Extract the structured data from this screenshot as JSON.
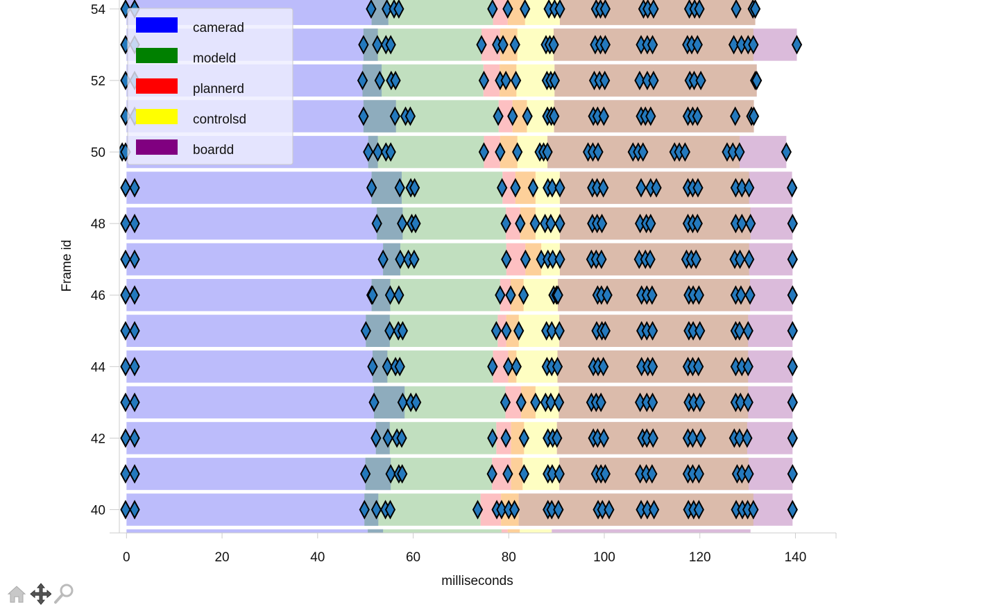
{
  "chart_data": {
    "type": "gantt",
    "xlabel": "milliseconds",
    "ylabel": "Frame id",
    "xlim": [
      -1.5,
      148.5
    ],
    "ylim": [
      39.35,
      54.25
    ],
    "x_ticks": [
      0,
      20,
      40,
      60,
      80,
      100,
      120,
      140
    ],
    "y_ticks": [
      40,
      42,
      44,
      46,
      48,
      50,
      52,
      54
    ],
    "legend": {
      "placement": "top-left",
      "entries": [
        {
          "name": "camerad",
          "color": "#0000ff"
        },
        {
          "name": "modeld",
          "color": "#008000"
        },
        {
          "name": "plannerd",
          "color": "#ff0000"
        },
        {
          "name": "controlsd",
          "color": "#ffff00"
        },
        {
          "name": "boardd",
          "color": "#800080"
        }
      ]
    },
    "bar_colors": {
      "camerad": "#bcbcfb",
      "camerad_modeld_overlap": "#8eacbd",
      "modeld": "#c1dfbf",
      "plannerd": "#fdc0c2",
      "plannerd_controlsd_overlap": "#fdd09a",
      "controlsd": "#fefec2",
      "controlsd_boardd_overlap": "#dbbbab",
      "boardd": "#dbbbdb"
    },
    "marker_color": "#2479bd",
    "frames": [
      {
        "id": 54,
        "camerad": [
          0,
          54.8
        ],
        "modeld": [
          51.3,
          76.7
        ],
        "plannerd": [
          76.7,
          83.4
        ],
        "controlsd": [
          79.8,
          90.7
        ],
        "boardd": [
          90.7,
          131.5
        ],
        "markers": [
          -0.2,
          1.7,
          51.2,
          54.5,
          56,
          57,
          76.6,
          79.8,
          83.4,
          88.4,
          89.6,
          90.7,
          98.3,
          99.2,
          100.2,
          108.2,
          109.1,
          110.3,
          117.8,
          118.9,
          119.9,
          127.6,
          131.1,
          131.6
        ]
      },
      {
        "id": 53,
        "camerad": [
          0,
          52.6
        ],
        "modeld": [
          49.6,
          74.3
        ],
        "plannerd": [
          74.3,
          81.8
        ],
        "controlsd": [
          78.2,
          89.4
        ],
        "boardd": [
          89.4,
          140.3
        ],
        "markers": [
          -0.2,
          1.7,
          49.6,
          52.5,
          54.3,
          55.3,
          74.3,
          77.6,
          78.8,
          81.3,
          87.8,
          88.6,
          89.4,
          98.1,
          99.2,
          100.2,
          107.7,
          109,
          110.1,
          117.4,
          118.3,
          119.5,
          127.1,
          128.7,
          130.1,
          131.2,
          140.3
        ]
      },
      {
        "id": 52,
        "camerad": [
          0,
          53.4
        ],
        "modeld": [
          49.4,
          74.7
        ],
        "plannerd": [
          74.7,
          81.6
        ],
        "controlsd": [
          78.1,
          89.6
        ],
        "boardd": [
          89.6,
          131.9
        ],
        "markers": [
          -0.2,
          1.7,
          49.4,
          53,
          55.4,
          56.3,
          74.8,
          78.2,
          79.4,
          81.5,
          88,
          88.8,
          89.6,
          97.9,
          99,
          100.1,
          107.4,
          109,
          110.3,
          117.9,
          118.8,
          120.2,
          131.6,
          131.9
        ]
      },
      {
        "id": 51,
        "camerad": [
          0,
          56.4
        ],
        "modeld": [
          49.6,
          77.9
        ],
        "plannerd": [
          77.9,
          83.8
        ],
        "controlsd": [
          80.8,
          89.5
        ],
        "boardd": [
          89.5,
          131.3
        ],
        "markers": [
          -0.2,
          1.7,
          49.6,
          56.2,
          58.4,
          59.4,
          77.8,
          80.8,
          83.9,
          88.1,
          88.9,
          89.5,
          97.7,
          98.6,
          99.9,
          107.7,
          108.6,
          109.7,
          117.5,
          118.5,
          119.5,
          127.4,
          130.8,
          131.3
        ]
      },
      {
        "id": 50,
        "camerad": [
          0,
          52.6
        ],
        "modeld": [
          50.6,
          74.8
        ],
        "plannerd": [
          74.8,
          81.8
        ],
        "controlsd": [
          78.2,
          88.1
        ],
        "boardd": [
          88.1,
          138.1
        ],
        "markers": [
          -0.9,
          -0.2,
          50.6,
          52.6,
          54.3,
          55.3,
          74.8,
          78.2,
          81.8,
          86.5,
          87.3,
          88.1,
          96.6,
          97.6,
          98.7,
          106,
          107.1,
          108.1,
          114.7,
          115.7,
          116.9,
          125.7,
          126.9,
          128.3,
          138.1
        ]
      },
      {
        "id": 49,
        "camerad": [
          0,
          57.6
        ],
        "modeld": [
          51.3,
          78.7
        ],
        "plannerd": [
          78.7,
          85.6
        ],
        "controlsd": [
          81.4,
          90.7
        ],
        "boardd": [
          90.7,
          139.3
        ],
        "markers": [
          -0.2,
          1.7,
          51.3,
          57.2,
          59.5,
          60.3,
          78.6,
          81.4,
          85.1,
          88.2,
          89.1,
          90.7,
          97.5,
          98.5,
          99.8,
          107.7,
          109.7,
          110.9,
          117.5,
          118.5,
          119.6,
          127.5,
          128.8,
          130.3,
          139.3
        ]
      },
      {
        "id": 48,
        "camerad": [
          0,
          57.8
        ],
        "modeld": [
          52.4,
          79.4
        ],
        "plannerd": [
          79.4,
          85.6
        ],
        "controlsd": [
          82.4,
          90.7
        ],
        "boardd": [
          90.7,
          139.4
        ],
        "markers": [
          -0.2,
          1.7,
          52.4,
          57.7,
          59.7,
          60.5,
          79.4,
          82.4,
          85.5,
          87.6,
          88.8,
          90.7,
          97.5,
          98.5,
          99.5,
          107.5,
          108.8,
          109.7,
          117.5,
          118.5,
          119.5,
          127.5,
          128.8,
          130.6,
          139.4
        ]
      },
      {
        "id": 47,
        "camerad": [
          0,
          57.3
        ],
        "modeld": [
          53.7,
          79.5
        ],
        "plannerd": [
          79.5,
          86.8
        ],
        "controlsd": [
          83.5,
          90.7
        ],
        "boardd": [
          90.7,
          139.4
        ],
        "markers": [
          -0.2,
          1.7,
          53.7,
          57.3,
          59,
          60.2,
          79.5,
          83.5,
          86.8,
          88.2,
          89.2,
          90.7,
          97.3,
          98.3,
          99.4,
          107.3,
          108.6,
          109.6,
          117.2,
          118.2,
          119.2,
          127.3,
          128.4,
          130.3,
          139.4
        ]
      },
      {
        "id": 46,
        "camerad": [
          0,
          55.2
        ],
        "modeld": [
          51.3,
          78.2
        ],
        "plannerd": [
          78.2,
          83.1
        ],
        "controlsd": [
          80.4,
          90.3
        ],
        "boardd": [
          90.3,
          139.4
        ],
        "markers": [
          -0.2,
          1.7,
          51.3,
          51.5,
          55.2,
          57,
          78.2,
          80.4,
          83.1,
          89.4,
          90,
          90.3,
          98.6,
          99.4,
          100.6,
          107.8,
          108.9,
          110,
          117.7,
          118.6,
          119.8,
          127.5,
          128.6,
          130.5,
          139.4
        ]
      },
      {
        "id": 45,
        "camerad": [
          0,
          55.1
        ],
        "modeld": [
          50.1,
          77.7
        ],
        "plannerd": [
          77.7,
          82.1
        ],
        "controlsd": [
          79.5,
          90.6
        ],
        "boardd": [
          90.6,
          139.4
        ],
        "markers": [
          -0.2,
          1.7,
          50.1,
          55.1,
          56.9,
          57.8,
          77.4,
          79.5,
          82.1,
          87.9,
          89,
          90.6,
          98.4,
          99.5,
          100.2,
          107.8,
          108.9,
          110.1,
          117.7,
          118.6,
          120,
          127.5,
          128.3,
          130.1,
          139.4
        ]
      },
      {
        "id": 44,
        "camerad": [
          0,
          54.6
        ],
        "modeld": [
          51.5,
          76.7
        ],
        "plannerd": [
          76.7,
          81.6
        ],
        "controlsd": [
          79.9,
          90.2
        ],
        "boardd": [
          90.2,
          139.4
        ],
        "markers": [
          -0.2,
          1.7,
          51.5,
          54.6,
          56.3,
          57.2,
          76.6,
          79.9,
          81.6,
          88,
          89,
          90.2,
          97.7,
          98.7,
          99.8,
          107.8,
          109.1,
          110.1,
          117.5,
          118.5,
          119.7,
          127.5,
          128.8,
          130.1,
          139.4
        ]
      },
      {
        "id": 43,
        "camerad": [
          0,
          58.2
        ],
        "modeld": [
          51.8,
          79.3
        ],
        "plannerd": [
          79.3,
          85.6
        ],
        "controlsd": [
          82.6,
          90.5
        ],
        "boardd": [
          90.5,
          139.4
        ],
        "markers": [
          -0.2,
          1.7,
          51.8,
          57.8,
          59.5,
          60.6,
          79.3,
          82.6,
          85.6,
          87.7,
          88.8,
          90.5,
          97.3,
          98.3,
          99.3,
          107.5,
          108.9,
          110.1,
          117.7,
          118.7,
          120,
          127.5,
          128.5,
          130.1,
          139.4
        ]
      },
      {
        "id": 42,
        "camerad": [
          0,
          55.1
        ],
        "modeld": [
          52.2,
          77.4
        ],
        "plannerd": [
          77.4,
          83.2
        ],
        "controlsd": [
          80.5,
          90.1
        ],
        "boardd": [
          90.1,
          139.4
        ],
        "markers": [
          -0.2,
          1.7,
          52.2,
          54.7,
          56.6,
          57.6,
          76.6,
          79.4,
          83.2,
          88.2,
          89.2,
          90.1,
          97.7,
          98.6,
          99.9,
          108,
          108.9,
          110.2,
          117.5,
          118.5,
          120.2,
          127.2,
          128.3,
          129.9,
          139.4
        ]
      },
      {
        "id": 41,
        "camerad": [
          0,
          55.3
        ],
        "modeld": [
          50,
          76.5
        ],
        "plannerd": [
          76.5,
          82.9
        ],
        "controlsd": [
          80.5,
          90.6
        ],
        "boardd": [
          90.6,
          139.4
        ],
        "markers": [
          -0.2,
          1.7,
          50,
          55.3,
          57,
          57.7,
          76.5,
          79.8,
          83.2,
          88.2,
          89.1,
          90.6,
          98.3,
          99.3,
          100.2,
          107.5,
          108.8,
          110,
          117.5,
          118.5,
          119.8,
          127.8,
          128.8,
          130.2,
          139.4
        ]
      },
      {
        "id": 40,
        "camerad": [
          0,
          52.7
        ],
        "modeld": [
          49.8,
          74.1
        ],
        "plannerd": [
          74.1,
          82.1
        ],
        "controlsd": [
          78.4,
          82.1
        ],
        "boardd": [
          82.1,
          139.4
        ],
        "markers": [
          -0.2,
          1.7,
          49.8,
          52.3,
          54.2,
          55.2,
          73.5,
          77.5,
          78.5,
          80,
          81.2,
          88.2,
          89,
          90.4,
          98.7,
          99.6,
          101,
          107.7,
          109,
          110.4,
          117.6,
          118.7,
          119.8,
          127.6,
          128.9,
          130,
          131.2,
          139.4
        ]
      },
      {
        "id": 39,
        "camerad": [
          0,
          53.7
        ],
        "modeld": [
          50.5,
          78.5
        ],
        "plannerd": [
          78.5,
          82.3
        ],
        "controlsd": [
          79.8,
          89
        ],
        "boardd": [
          89,
          130.6
        ],
        "markers": []
      }
    ]
  },
  "toolbar": {
    "icons": [
      "home-icon",
      "move-icon",
      "zoom-icon"
    ]
  }
}
